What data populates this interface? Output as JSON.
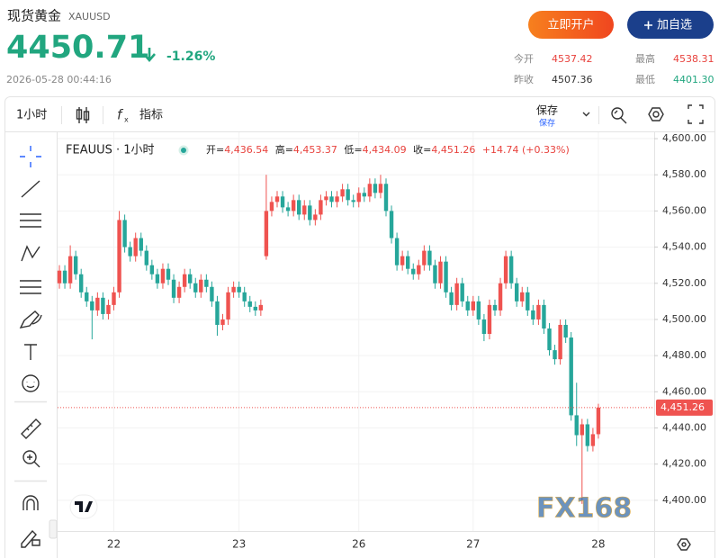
{
  "header": {
    "title": "现货黄金",
    "symbol": "XAUUSD",
    "price": "4450.71",
    "change": "-1.26%",
    "timestamp": "2026-05-28 00:44:16",
    "buttons": [
      "立即开户",
      "加自选"
    ],
    "stats": [
      {
        "label": "今开",
        "value": "4537.42"
      },
      {
        "label": "最高",
        "value": "4538.31"
      },
      {
        "label": "昨收",
        "value": "4507.36"
      },
      {
        "label": "最低",
        "value": "4401.30"
      }
    ]
  },
  "toolbar": {
    "interval": "1小时",
    "indicators": "指标",
    "save": "保存",
    "save_sub": "保存"
  },
  "legend": {
    "symbol": "FEAUUS · 1小时",
    "items": [
      {
        "label": "开=",
        "value": "4,436.54"
      },
      {
        "label": "高=",
        "value": "4,453.37"
      },
      {
        "label": "低=",
        "value": "4,434.09"
      },
      {
        "label": "收=",
        "value": "4,451.26"
      }
    ],
    "change": "+14.74 (+0.33%)"
  },
  "watermark": "FX168",
  "chart_data": {
    "type": "candlestick",
    "up_color": "#ef5350",
    "down_color": "#26a69a",
    "categories": [
      null,
      null,
      null,
      null,
      null,
      null,
      null,
      null,
      null,
      null,
      "22",
      null,
      null,
      null,
      null,
      null,
      null,
      null,
      null,
      null,
      null,
      null,
      null,
      null,
      null,
      null,
      null,
      null,
      null,
      null,
      null,
      null,
      null,
      "23",
      null,
      null,
      null,
      null,
      null,
      null,
      null,
      null,
      null,
      null,
      null,
      null,
      null,
      null,
      null,
      null,
      null,
      null,
      null,
      null,
      null,
      "26",
      null,
      null,
      null,
      null,
      null,
      null,
      null,
      null,
      null,
      null,
      null,
      null,
      null,
      null,
      null,
      null,
      null,
      null,
      null,
      null,
      "27",
      null,
      null,
      null,
      null,
      null,
      null,
      null,
      null,
      null,
      null,
      null,
      null,
      null,
      null,
      null,
      null,
      null,
      null,
      null,
      null,
      null,
      null,
      "28"
    ],
    "open": [
      4520,
      4527,
      4520,
      4535,
      4525,
      4515,
      4510,
      4505,
      4512,
      4503,
      4508,
      4515,
      4555,
      4540,
      4535,
      4545,
      4538,
      4530,
      4525,
      4520,
      4528,
      4522,
      4512,
      4518,
      4525,
      4520,
      4515,
      4522,
      4518,
      4510,
      4497,
      4500,
      4515,
      4518,
      4515,
      4510,
      4507,
      4505,
      4535,
      4560,
      4565,
      4568,
      4562,
      4560,
      4566,
      4558,
      4563,
      4555,
      4558,
      4566,
      4568,
      4565,
      4568,
      4572,
      4566,
      4565,
      4570,
      4568,
      4575,
      4570,
      4575,
      4560,
      4545,
      4530,
      4535,
      4528,
      4525,
      4530,
      4538,
      4530,
      4520,
      4532,
      4515,
      4508,
      4520,
      4510,
      4505,
      4510,
      4500,
      4492,
      4508,
      4505,
      4520,
      4535,
      4520,
      4510,
      4515,
      4505,
      4500,
      4508,
      4495,
      4483,
      4478,
      4497,
      4490,
      4447,
      4436,
      4442,
      4430,
      4436.54
    ],
    "high": [
      4530,
      4530,
      4541,
      4538,
      4528,
      4518,
      4513,
      4515,
      4515,
      4511,
      4518,
      4560,
      4558,
      4543,
      4548,
      4548,
      4541,
      4533,
      4528,
      4531,
      4531,
      4525,
      4521,
      4528,
      4528,
      4523,
      4525,
      4525,
      4521,
      4513,
      4503,
      4518,
      4521,
      4521,
      4518,
      4513,
      4510,
      4511,
      4580,
      4568,
      4571,
      4571,
      4565,
      4569,
      4569,
      4566,
      4566,
      4561,
      4569,
      4571,
      4571,
      4571,
      4575,
      4575,
      4569,
      4573,
      4573,
      4578,
      4578,
      4580,
      4578,
      4563,
      4548,
      4538,
      4538,
      4531,
      4533,
      4541,
      4541,
      4533,
      4535,
      4535,
      4518,
      4523,
      4523,
      4513,
      4513,
      4513,
      4503,
      4511,
      4511,
      4523,
      4538,
      4538,
      4523,
      4518,
      4518,
      4508,
      4511,
      4511,
      4498,
      4486,
      4500,
      4500,
      4493,
      4465,
      4445,
      4445,
      4440,
      4453.37
    ],
    "low": [
      4517,
      4517,
      4517,
      4522,
      4512,
      4507,
      4489,
      4502,
      4500,
      4500,
      4505,
      4512,
      4537,
      4532,
      4532,
      4535,
      4527,
      4522,
      4517,
      4517,
      4519,
      4509,
      4509,
      4515,
      4517,
      4512,
      4512,
      4515,
      4507,
      4491,
      4494,
      4497,
      4512,
      4512,
      4507,
      4504,
      4502,
      4502,
      4533,
      4557,
      4562,
      4559,
      4557,
      4557,
      4555,
      4555,
      4552,
      4552,
      4555,
      4563,
      4562,
      4562,
      4565,
      4563,
      4562,
      4562,
      4565,
      4565,
      4567,
      4567,
      4557,
      4542,
      4527,
      4527,
      4525,
      4522,
      4522,
      4527,
      4527,
      4517,
      4517,
      4512,
      4505,
      4505,
      4507,
      4502,
      4502,
      4497,
      4488,
      4489,
      4502,
      4502,
      4517,
      4517,
      4507,
      4507,
      4502,
      4497,
      4497,
      4492,
      4480,
      4475,
      4475,
      4487,
      4444,
      4430,
      4398,
      4427,
      4427,
      4434.09
    ],
    "close": [
      4527,
      4520,
      4535,
      4525,
      4515,
      4510,
      4505,
      4512,
      4503,
      4508,
      4515,
      4555,
      4540,
      4535,
      4545,
      4538,
      4530,
      4525,
      4520,
      4528,
      4522,
      4512,
      4518,
      4525,
      4520,
      4515,
      4522,
      4518,
      4510,
      4497,
      4500,
      4515,
      4518,
      4515,
      4510,
      4507,
      4505,
      4508,
      4560,
      4565,
      4568,
      4562,
      4560,
      4566,
      4558,
      4563,
      4555,
      4558,
      4566,
      4568,
      4565,
      4568,
      4572,
      4566,
      4565,
      4570,
      4568,
      4575,
      4570,
      4575,
      4560,
      4545,
      4530,
      4535,
      4528,
      4525,
      4530,
      4538,
      4530,
      4520,
      4532,
      4515,
      4508,
      4520,
      4510,
      4505,
      4510,
      4500,
      4492,
      4508,
      4505,
      4520,
      4535,
      4520,
      4510,
      4515,
      4505,
      4500,
      4508,
      4495,
      4483,
      4478,
      4497,
      4490,
      4447,
      4436,
      4442,
      4430,
      4436.54,
      4451.26
    ],
    "ylim": [
      4383,
      4604.5
    ],
    "yticks": [
      {
        "value": 4400,
        "label": "4,400.00"
      },
      {
        "value": 4420,
        "label": "4,420.00"
      },
      {
        "value": 4440,
        "label": "4,440.00"
      },
      {
        "value": 4460,
        "label": "4,460.00"
      },
      {
        "value": 4480,
        "label": "4,480.00"
      },
      {
        "value": 4500,
        "label": "4,500.00"
      },
      {
        "value": 4520,
        "label": "4,520.00"
      },
      {
        "value": 4540,
        "label": "4,540.00"
      },
      {
        "value": 4560,
        "label": "4,560.00"
      },
      {
        "value": 4580,
        "label": "4,580.00"
      },
      {
        "value": 4600,
        "label": "4,600.00"
      }
    ],
    "last_price": {
      "value": 4451.26,
      "label": "4,451.26"
    },
    "grid": true
  }
}
